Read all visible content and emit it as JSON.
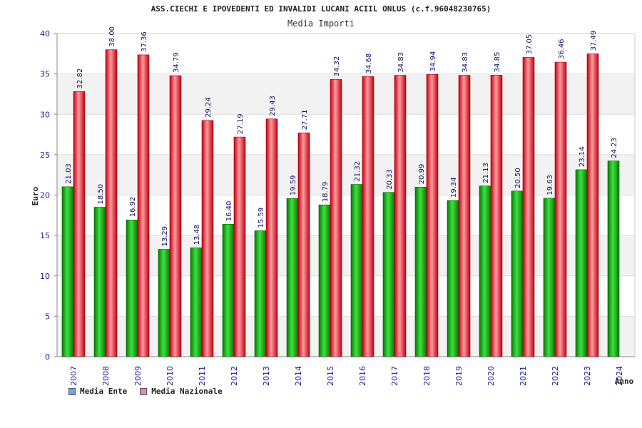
{
  "chart_data": {
    "type": "bar",
    "title": "ASS.CIECHI E IPOVEDENTI ED INVALIDI LUCANI ACIIL ONLUS (c.f.96048230765)",
    "subtitle": "Media Importi",
    "xlabel": "Anno",
    "ylabel": "Euro",
    "ylim": [
      0,
      40
    ],
    "yticks": [
      "0",
      "5",
      "10",
      "15",
      "20",
      "25",
      "30",
      "35",
      "40"
    ],
    "categories": [
      "2007",
      "2008",
      "2009",
      "2010",
      "2011",
      "2012",
      "2013",
      "2014",
      "2015",
      "2016",
      "2017",
      "2018",
      "2019",
      "2020",
      "2021",
      "2022",
      "2023",
      "2024"
    ],
    "series": [
      {
        "name": "Media Ente",
        "color": "#0a9e0a",
        "legend_color": "#6aa8e8",
        "values": [
          21.03,
          18.5,
          16.92,
          13.29,
          13.48,
          16.4,
          15.59,
          19.59,
          18.79,
          21.32,
          20.33,
          20.99,
          19.34,
          21.13,
          20.5,
          19.63,
          23.14,
          24.23
        ],
        "labels": [
          "21.03",
          "18.50",
          "16.92",
          "13.29",
          "13.48",
          "16.40",
          "15.59",
          "19.59",
          "18.79",
          "21.32",
          "20.33",
          "20.99",
          "19.34",
          "21.13",
          "20.50",
          "19.63",
          "23.14",
          "24.23"
        ]
      },
      {
        "name": "Media Nazionale",
        "color": "#e8202a",
        "legend_color": "#e888b8",
        "values": [
          32.82,
          38.0,
          37.36,
          34.79,
          29.24,
          27.19,
          29.43,
          27.71,
          34.32,
          34.68,
          34.83,
          34.94,
          34.83,
          34.85,
          37.05,
          36.46,
          37.49,
          null
        ],
        "labels": [
          "32.82",
          "38.00",
          "37.36",
          "34.79",
          "29.24",
          "27.19",
          "29.43",
          "27.71",
          "34.32",
          "34.68",
          "34.83",
          "34.94",
          "34.83",
          "34.85",
          "37.05",
          "36.46",
          "37.49",
          ""
        ]
      }
    ],
    "legend_position": "bottom-left",
    "grid": true
  }
}
